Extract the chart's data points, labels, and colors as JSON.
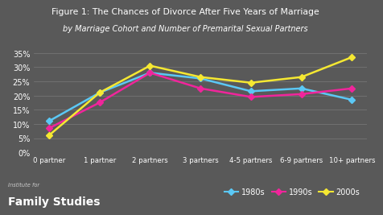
{
  "title_line1": "Figure 1: The Chances of Divorce After Five Years of Marriage",
  "title_line2": "by Marriage Cohort and Number of Premarital Sexual Partners",
  "categories": [
    "0 partner",
    "1 partner",
    "2 partners",
    "3 partners",
    "4-5 partners",
    "6-9 partners",
    "10+ partners"
  ],
  "series": {
    "1980s": [
      11,
      21,
      28,
      26,
      21.5,
      22.5,
      18.5
    ],
    "1990s": [
      8.5,
      17.5,
      28,
      22.5,
      19.5,
      20.5,
      22.5
    ],
    "2000s": [
      6,
      21,
      30.5,
      26.5,
      24.5,
      26.5,
      33.5
    ]
  },
  "colors": {
    "1980s": "#5bc8f5",
    "1990s": "#f0259b",
    "2000s": "#f5e832"
  },
  "background_color": "#595959",
  "text_color": "#ffffff",
  "grid_color": "#7a7a7a",
  "ylim": [
    0,
    37
  ],
  "yticks": [
    0,
    5,
    10,
    15,
    20,
    25,
    30,
    35
  ],
  "watermark_line1": "Institute for",
  "watermark_line2": "Family Studies",
  "legend_labels": [
    "1980s",
    "1990s",
    "2000s"
  ]
}
